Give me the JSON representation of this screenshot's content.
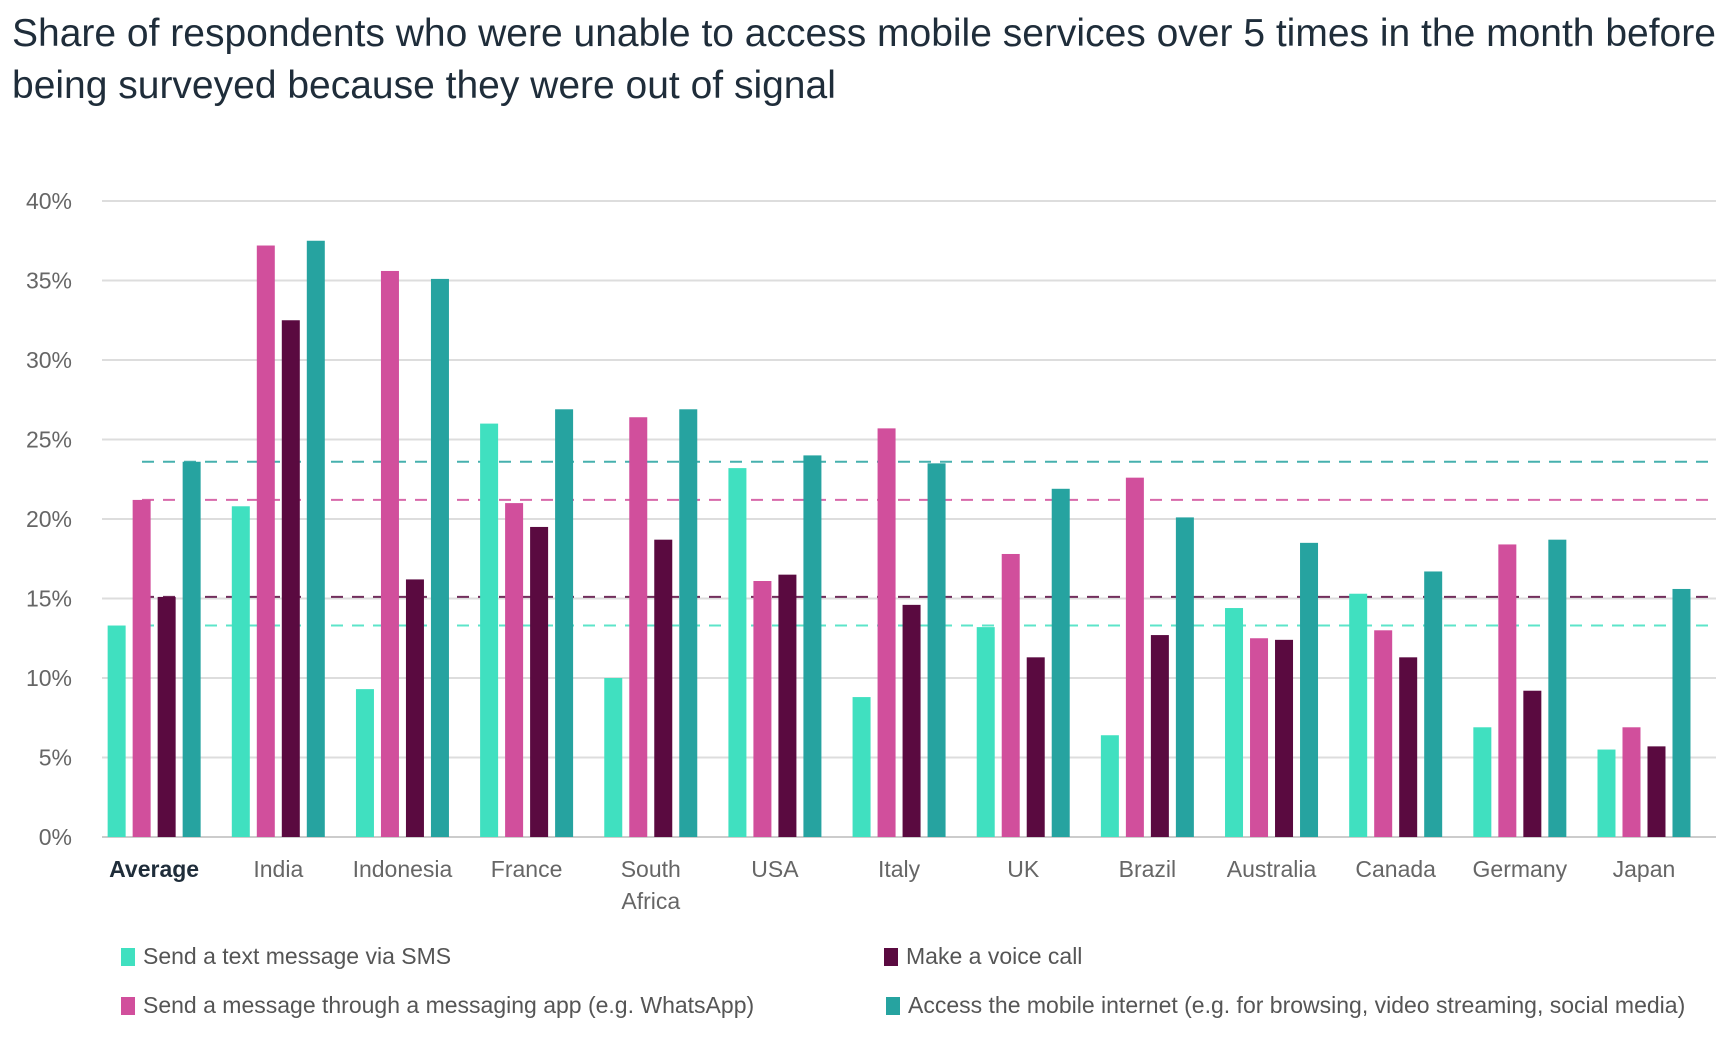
{
  "chart_data": {
    "type": "bar",
    "title": "Share of respondents who were unable to access mobile services over 5 times in the month before being surveyed because they were out of signal",
    "xlabel": "",
    "ylabel": "",
    "ylim": [
      0,
      40
    ],
    "yticks": [
      "0%",
      "5%",
      "10%",
      "15%",
      "20%",
      "25%",
      "30%",
      "35%",
      "40%"
    ],
    "grid": true,
    "legend_position": "bottom",
    "categories": [
      "Average",
      "India",
      "Indonesia",
      "France",
      "South Africa",
      "USA",
      "Italy",
      "UK",
      "Brazil",
      "Australia",
      "Canada",
      "Germany",
      "Japan"
    ],
    "reference_lines": "dashed horizontal lines at each series' Average value",
    "series": [
      {
        "name": "Send a text message via SMS",
        "color": "#40e0c0",
        "values": [
          13.3,
          20.8,
          9.3,
          26.0,
          10.0,
          23.2,
          8.8,
          13.2,
          6.4,
          14.4,
          15.3,
          6.9,
          5.5
        ]
      },
      {
        "name": "Send a message through a messaging app (e.g. WhatsApp)",
        "color": "#d14f9c",
        "values": [
          21.2,
          37.2,
          35.6,
          21.0,
          26.4,
          16.1,
          25.7,
          17.8,
          22.6,
          12.5,
          13.0,
          18.4,
          6.9
        ]
      },
      {
        "name": "Make a voice call",
        "color": "#5a0a40",
        "values": [
          15.1,
          32.5,
          16.2,
          19.5,
          18.7,
          16.5,
          14.6,
          11.3,
          12.7,
          12.4,
          11.3,
          9.2,
          5.7
        ]
      },
      {
        "name": "Access the mobile internet (e.g. for browsing, video streaming, social media)",
        "color": "#26a3a0",
        "values": [
          23.6,
          37.5,
          35.1,
          26.9,
          26.9,
          24.0,
          23.5,
          21.9,
          20.1,
          18.5,
          16.7,
          18.7,
          15.6
        ]
      }
    ]
  }
}
